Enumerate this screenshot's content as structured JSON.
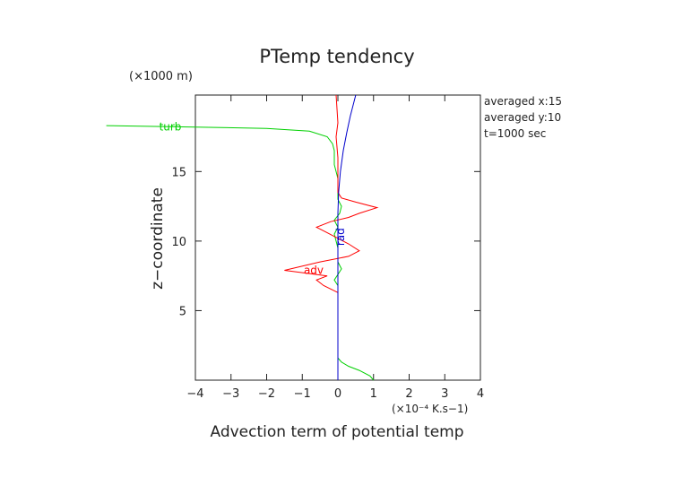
{
  "chart_data": {
    "type": "line",
    "title": "PTemp tendency",
    "xlabel": "Advection term of potential temp",
    "ylabel": "z−coordinate",
    "x_unit": "(×10⁻⁴ K.s−1)",
    "y_unit": "(×1000 m)",
    "xlim": [
      -4,
      4
    ],
    "ylim": [
      0,
      20.5
    ],
    "x_ticks": [
      -4,
      -3,
      -2,
      -1,
      0,
      1,
      2,
      3,
      4
    ],
    "x_tick_labels": [
      "−4",
      "−3",
      "−2",
      "−1",
      "0",
      "1",
      "2",
      "3",
      "4"
    ],
    "y_ticks": [
      5,
      10,
      15
    ],
    "y_tick_labels": [
      "5",
      "10",
      "15"
    ],
    "annotations": [
      "averaged  x:15",
      "averaged  y:10",
      "t=1000 sec"
    ],
    "series": [
      {
        "name": "turb",
        "color": "#00d000",
        "label_text": "turb",
        "points": [
          [
            1.0,
            0.0
          ],
          [
            0.9,
            0.3
          ],
          [
            0.6,
            0.7
          ],
          [
            0.3,
            1.0
          ],
          [
            0.1,
            1.3
          ],
          [
            0.0,
            1.6
          ],
          [
            0.0,
            5.0
          ],
          [
            0.0,
            6.8
          ],
          [
            -0.1,
            7.2
          ],
          [
            0.0,
            7.6
          ],
          [
            0.1,
            8.0
          ],
          [
            0.0,
            8.5
          ],
          [
            0.0,
            9.5
          ],
          [
            -0.05,
            10.0
          ],
          [
            -0.1,
            10.5
          ],
          [
            0.0,
            11.0
          ],
          [
            -0.1,
            11.5
          ],
          [
            0.05,
            12.0
          ],
          [
            0.1,
            12.5
          ],
          [
            0.0,
            13.0
          ],
          [
            0.0,
            14.5
          ],
          [
            -0.1,
            15.5
          ],
          [
            -0.1,
            16.5
          ],
          [
            -0.15,
            17.0
          ],
          [
            -0.3,
            17.5
          ],
          [
            -0.8,
            17.9
          ],
          [
            -2.0,
            18.1
          ],
          [
            -4.0,
            18.2
          ],
          [
            -6.5,
            18.3
          ]
        ]
      },
      {
        "name": "adv",
        "color": "#ff0000",
        "label_text": "adv",
        "points": [
          [
            0.0,
            0.0
          ],
          [
            0.0,
            5.5
          ],
          [
            0.0,
            6.3
          ],
          [
            -0.4,
            6.8
          ],
          [
            -0.6,
            7.2
          ],
          [
            -0.3,
            7.5
          ],
          [
            -1.5,
            7.9
          ],
          [
            -0.5,
            8.5
          ],
          [
            0.3,
            8.9
          ],
          [
            0.6,
            9.3
          ],
          [
            0.3,
            9.8
          ],
          [
            0.0,
            10.2
          ],
          [
            -0.3,
            10.6
          ],
          [
            -0.6,
            11.0
          ],
          [
            -0.2,
            11.4
          ],
          [
            0.3,
            11.7
          ],
          [
            0.6,
            12.0
          ],
          [
            1.1,
            12.4
          ],
          [
            0.5,
            12.8
          ],
          [
            0.1,
            13.1
          ],
          [
            0.0,
            13.5
          ],
          [
            0.0,
            16.0
          ],
          [
            -0.05,
            17.5
          ],
          [
            0.0,
            18.5
          ],
          [
            -0.05,
            20.5
          ]
        ]
      },
      {
        "name": "rad",
        "color": "#0000cc",
        "label_text": "rad",
        "points": [
          [
            0.0,
            0.0
          ],
          [
            0.0,
            12.0
          ],
          [
            0.02,
            13.5
          ],
          [
            0.07,
            15.0
          ],
          [
            0.15,
            16.5
          ],
          [
            0.25,
            17.8
          ],
          [
            0.35,
            19.0
          ],
          [
            0.45,
            20.0
          ],
          [
            0.5,
            20.5
          ]
        ]
      }
    ]
  }
}
